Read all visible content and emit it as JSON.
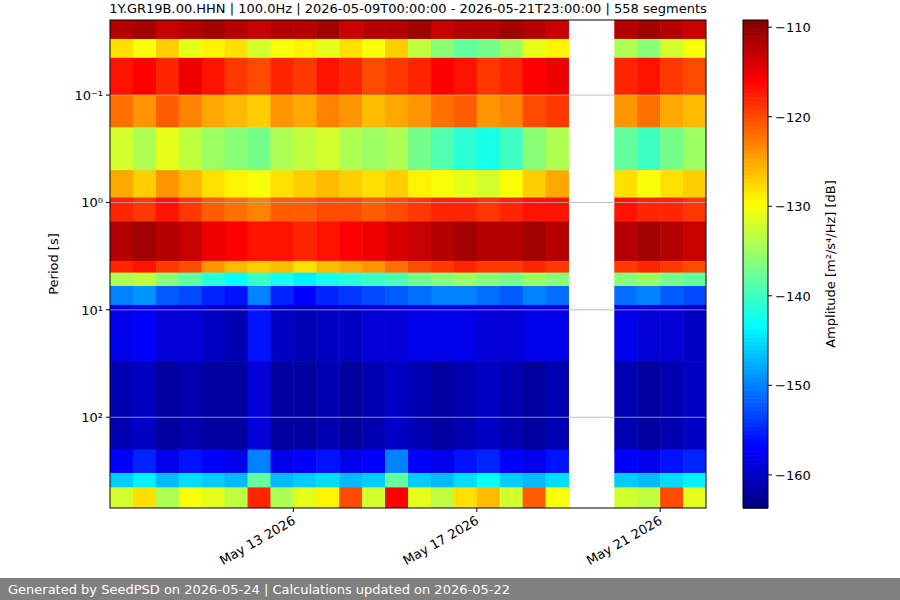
{
  "chart_data": {
    "type": "heatmap",
    "title": "1Y.GR19B.00.HHN | 100.0Hz | 2026-05-09T00:00:00 - 2026-05-21T23:00:00 | 558 segments",
    "y_label": "Period [s]",
    "footer": "Generated by SeedPSD on 2026-05-24 | Calculations updated on 2026-05-22",
    "log": "y",
    "grid": "y",
    "xlim": [
      "2026-05-09T00:00",
      "2026-05-22T00:00"
    ],
    "xticks": [
      {
        "value": "2026-05-13T00:00",
        "label": "May 13 2026"
      },
      {
        "value": "2026-05-17T00:00",
        "label": "May 17 2026"
      },
      {
        "value": "2026-05-21T00:00",
        "label": "May 21 2026"
      }
    ],
    "ylim": [
      700,
      0.02
    ],
    "yticks": [
      {
        "value": 0.1,
        "label": "10⁻¹"
      },
      {
        "value": 1,
        "label": "10⁰"
      },
      {
        "value": 10,
        "label": "10¹"
      },
      {
        "value": 100,
        "label": "10²"
      }
    ],
    "x": [
      "2026-05-09T00:00",
      "2026-05-09T12:00",
      "2026-05-10T00:00",
      "2026-05-10T12:00",
      "2026-05-11T00:00",
      "2026-05-11T12:00",
      "2026-05-12T00:00",
      "2026-05-12T12:00",
      "2026-05-13T00:00",
      "2026-05-13T12:00",
      "2026-05-14T00:00",
      "2026-05-14T12:00",
      "2026-05-15T00:00",
      "2026-05-15T12:00",
      "2026-05-16T00:00",
      "2026-05-16T12:00",
      "2026-05-17T00:00",
      "2026-05-17T12:00",
      "2026-05-18T00:00",
      "2026-05-18T12:00",
      "2026-05-19T00:00",
      "2026-05-19T12:00",
      "2026-05-20T00:00",
      "2026-05-20T12:00",
      "2026-05-21T00:00",
      "2026-05-21T12:00"
    ],
    "period_bins": [
      0.02,
      0.03,
      0.045,
      0.1,
      0.2,
      0.5,
      0.9,
      1.5,
      3.5,
      4.5,
      6,
      9,
      30,
      200,
      330,
      450,
      700
    ],
    "cells": [
      [
        -112,
        -111,
        -113,
        -112,
        -111,
        -112,
        -113,
        -112,
        -112,
        -111,
        -113,
        -112,
        -112,
        -111,
        -113,
        -112,
        -112,
        -111,
        -112,
        -113,
        null,
        null,
        -112,
        -111,
        -112,
        -113
      ],
      [
        -128,
        -130,
        -127,
        -131,
        -129,
        -128,
        -132,
        -130,
        -129,
        -131,
        -128,
        -130,
        -127,
        -133,
        -136,
        -138,
        -137,
        -135,
        -131,
        -129,
        null,
        null,
        -134,
        -136,
        -132,
        -130
      ],
      [
        -117,
        -116,
        -118,
        -115,
        -117,
        -119,
        -120,
        -118,
        -119,
        -117,
        -118,
        -120,
        -119,
        -118,
        -116,
        -117,
        -119,
        -118,
        -116,
        -115,
        null,
        null,
        -118,
        -117,
        -119,
        -120
      ],
      [
        -122,
        -124,
        -121,
        -123,
        -125,
        -126,
        -127,
        -124,
        -125,
        -123,
        -124,
        -126,
        -125,
        -124,
        -122,
        -121,
        -124,
        -123,
        -120,
        -119,
        null,
        null,
        -124,
        -122,
        -125,
        -126
      ],
      [
        -132,
        -134,
        -131,
        -133,
        -135,
        -136,
        -137,
        -134,
        -133,
        -132,
        -134,
        -135,
        -134,
        -137,
        -139,
        -141,
        -142,
        -140,
        -136,
        -134,
        null,
        null,
        -138,
        -140,
        -137,
        -135
      ],
      [
        -125,
        -127,
        -124,
        -126,
        -128,
        -129,
        -130,
        -128,
        -127,
        -126,
        -127,
        -128,
        -127,
        -129,
        -130,
        -131,
        -132,
        -130,
        -127,
        -125,
        null,
        null,
        -128,
        -130,
        -128,
        -127
      ],
      [
        -118,
        -119,
        -117,
        -119,
        -121,
        -122,
        -123,
        -121,
        -121,
        -120,
        -120,
        -121,
        -120,
        -119,
        -118,
        -118,
        -119,
        -118,
        -117,
        -117,
        null,
        null,
        -117,
        -118,
        -118,
        -119
      ],
      [
        -112,
        -111,
        -112,
        -113,
        -115,
        -116,
        -117,
        -117,
        -118,
        -117,
        -116,
        -115,
        -114,
        -113,
        -112,
        -111,
        -112,
        -112,
        -111,
        -112,
        null,
        null,
        -112,
        -111,
        -112,
        -113
      ],
      [
        -118,
        -117,
        -119,
        -120,
        -124,
        -126,
        -127,
        -126,
        -128,
        -126,
        -125,
        -124,
        -122,
        -120,
        -119,
        -118,
        -119,
        -119,
        -118,
        -119,
        null,
        null,
        -119,
        -118,
        -119,
        -120
      ],
      [
        -134,
        -133,
        -136,
        -138,
        -141,
        -143,
        -140,
        -142,
        -144,
        -142,
        -141,
        -140,
        -139,
        -137,
        -136,
        -135,
        -136,
        -137,
        -135,
        -136,
        null,
        null,
        -136,
        -135,
        -137,
        -138
      ],
      [
        -150,
        -149,
        -152,
        -153,
        -155,
        -156,
        -150,
        -155,
        -157,
        -155,
        -154,
        -153,
        -152,
        -151,
        -150,
        -150,
        -151,
        -152,
        -150,
        -151,
        null,
        null,
        -151,
        -150,
        -152,
        -153
      ],
      [
        -158,
        -157,
        -159,
        -159,
        -160,
        -161,
        -156,
        -160,
        -161,
        -160,
        -160,
        -159,
        -159,
        -158,
        -158,
        -158,
        -159,
        -159,
        -158,
        -158,
        null,
        null,
        -158,
        -159,
        -159,
        -160
      ],
      [
        -161,
        -160,
        -162,
        -161,
        -162,
        -162,
        -159,
        -162,
        -162,
        -161,
        -162,
        -161,
        -160,
        -161,
        -162,
        -161,
        -160,
        -161,
        -162,
        -161,
        null,
        null,
        -161,
        -162,
        -161,
        -160
      ],
      [
        -157,
        -155,
        -158,
        -156,
        -157,
        -158,
        -150,
        -158,
        -157,
        -156,
        -158,
        -157,
        -150,
        -157,
        -158,
        -156,
        -155,
        -157,
        -158,
        -156,
        null,
        null,
        -157,
        -158,
        -156,
        -155
      ],
      [
        -146,
        -144,
        -147,
        -145,
        -146,
        -147,
        -138,
        -147,
        -146,
        -145,
        -147,
        -146,
        -138,
        -146,
        -147,
        -145,
        -143,
        -146,
        -147,
        -145,
        null,
        null,
        -146,
        -147,
        -145,
        -144
      ],
      [
        -132,
        -128,
        -134,
        -130,
        -131,
        -133,
        -118,
        -134,
        -131,
        -129,
        -120,
        -132,
        -116,
        -131,
        -133,
        -128,
        -126,
        -132,
        -121,
        -130,
        null,
        null,
        -132,
        -133,
        -120,
        -131
      ]
    ],
    "colorbar": {
      "label": "Amplitude [m²/s⁴/Hz] [dB]",
      "range": [
        -163.7,
        -109.2
      ],
      "ticks": [
        {
          "value": -110,
          "label": "−110"
        },
        {
          "value": -120,
          "label": "−120"
        },
        {
          "value": -130,
          "label": "−130"
        },
        {
          "value": -140,
          "label": "−140"
        },
        {
          "value": -150,
          "label": "−150"
        },
        {
          "value": -160,
          "label": "−160"
        }
      ]
    }
  }
}
